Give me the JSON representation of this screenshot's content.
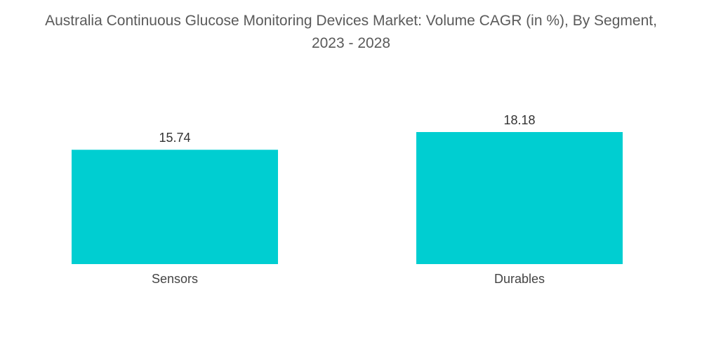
{
  "chart_data": {
    "type": "bar",
    "title": "Australia Continuous Glucose Monitoring Devices Market: Volume CAGR (in %), By Segment, 2023 - 2028",
    "categories": [
      "Sensors",
      "Durables"
    ],
    "values": [
      15.74,
      18.18
    ],
    "value_labels": [
      "15.74",
      "18.18"
    ],
    "xlabel": "",
    "ylabel": "",
    "ylim": [
      0,
      18.18
    ],
    "grid": false,
    "bar_color": "#00CED1"
  }
}
